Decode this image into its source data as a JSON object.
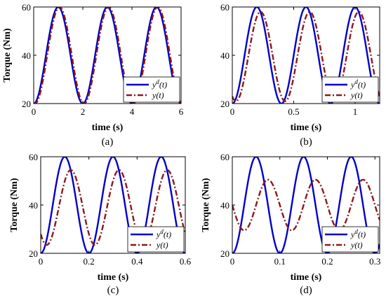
{
  "chart_data": [
    {
      "type": "line",
      "caption": "(a)",
      "xlabel": "time (s)",
      "ylabel": "Torque (Nm)",
      "xlim": [
        0,
        6
      ],
      "ylim": [
        20,
        60
      ],
      "xticks": [
        "0",
        "2",
        "4",
        "6"
      ],
      "yticks": [
        "20",
        "40",
        "60"
      ],
      "legend_position": "bottom-right",
      "series": [
        {
          "name": "y^d(t)",
          "color": "#0000cc",
          "style": "solid",
          "mean": 40,
          "amplitude": 20,
          "period": 2,
          "phase_lag": 0
        },
        {
          "name": "y(t)",
          "color": "#8b1a1a",
          "style": "dash-dot",
          "mean": 40,
          "amplitude": 20,
          "period": 2,
          "phase_lag": 0.05
        }
      ]
    },
    {
      "type": "line",
      "caption": "(b)",
      "xlabel": "time (s)",
      "ylabel": "",
      "xlim": [
        0,
        1.2
      ],
      "ylim": [
        20,
        60
      ],
      "xticks": [
        "0",
        "0.5",
        "1"
      ],
      "yticks": [
        "20",
        "40",
        "60"
      ],
      "legend_position": "bottom-right",
      "series": [
        {
          "name": "y^d(t)",
          "color": "#0000cc",
          "style": "solid",
          "mean": 40,
          "amplitude": 20,
          "period": 0.4,
          "phase_lag": 0
        },
        {
          "name": "y(t)",
          "color": "#8b1a1a",
          "style": "dash-dot",
          "mean": 39.5,
          "amplitude": 18.5,
          "period": 0.4,
          "phase_lag": 0.03
        }
      ]
    },
    {
      "type": "line",
      "caption": "(c)",
      "xlabel": "time (s)",
      "ylabel": "Torque (Nm)",
      "xlim": [
        0,
        0.6
      ],
      "ylim": [
        20,
        60
      ],
      "xticks": [
        "0",
        "0.2",
        "0.4",
        "0.6"
      ],
      "yticks": [
        "20",
        "40",
        "60"
      ],
      "legend_position": "bottom-right",
      "series": [
        {
          "name": "y^d(t)",
          "color": "#0000cc",
          "style": "solid",
          "mean": 40,
          "amplitude": 20,
          "period": 0.2,
          "phase_lag": 0
        },
        {
          "name": "y(t)",
          "color": "#8b1a1a",
          "style": "dash-dot",
          "mean": 39,
          "amplitude": 15.5,
          "period": 0.2,
          "phase_lag": 0.025
        }
      ]
    },
    {
      "type": "line",
      "caption": "(d)",
      "xlabel": "time (s)",
      "ylabel": "Torque (Nm)",
      "xlim": [
        0,
        0.31
      ],
      "ylim": [
        20,
        60
      ],
      "xticks": [
        "0",
        "0.1",
        "0.2",
        "0.3"
      ],
      "yticks": [
        "20",
        "40",
        "60"
      ],
      "legend_position": "bottom-right",
      "series": [
        {
          "name": "y^d(t)",
          "color": "#0000cc",
          "style": "solid",
          "mean": 40,
          "amplitude": 20,
          "period": 0.1,
          "phase_lag": 0
        },
        {
          "name": "y(t)",
          "color": "#8b1a1a",
          "style": "dash-dot",
          "mean": 40,
          "amplitude": 10.5,
          "period": 0.1,
          "phase_lag": 0.025
        }
      ]
    }
  ]
}
